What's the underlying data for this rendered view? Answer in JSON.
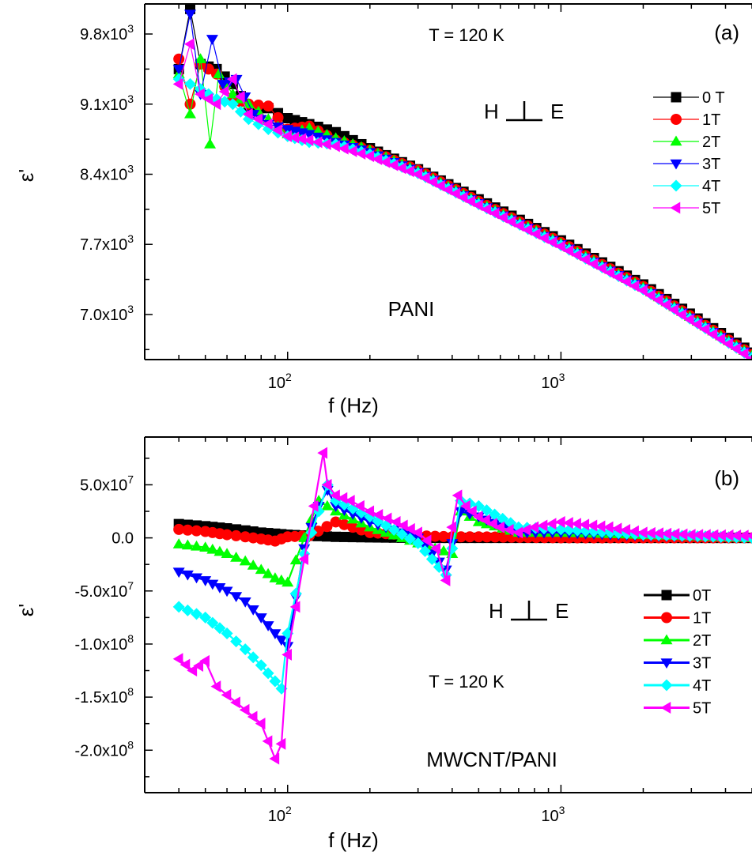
{
  "chart_data": [
    {
      "type": "line",
      "panel_label": "(a)",
      "xlabel": "f (Hz)",
      "ylabel": "ε'",
      "xscale": "log",
      "xlim": [
        30,
        5000
      ],
      "ylim": [
        6550,
        10100
      ],
      "xticks": [
        100,
        1000
      ],
      "xtick_labels": [
        {
          "base": "10",
          "exp": "2"
        },
        {
          "base": "10",
          "exp": "3"
        }
      ],
      "yticks": [
        7000,
        7700,
        8400,
        9100,
        9800
      ],
      "ytick_labels": [
        {
          "base": "7.0x10",
          "exp": "3"
        },
        {
          "base": "7.7x10",
          "exp": "3"
        },
        {
          "base": "8.4x10",
          "exp": "3"
        },
        {
          "base": "9.1x10",
          "exp": "3"
        },
        {
          "base": "9.8x10",
          "exp": "3"
        }
      ],
      "annotations": {
        "temperature": "T = 120 K",
        "geometry_left": "H",
        "geometry_right": "E",
        "sample": "PANI"
      },
      "legend_position": "right",
      "series": [
        {
          "name": "0 T",
          "color": "#000000",
          "marker": "square",
          "x": [
            40,
            44,
            48,
            55,
            63,
            72,
            85,
            100,
            120,
            150,
            200,
            300,
            500,
            1000,
            2000,
            5000
          ],
          "y": [
            9450,
            10050,
            9500,
            9450,
            9300,
            9060,
            9060,
            8960,
            8900,
            8820,
            8660,
            8450,
            8150,
            7740,
            7300,
            6620
          ]
        },
        {
          "name": "1T",
          "color": "#ff0000",
          "marker": "circle",
          "x": [
            40,
            44,
            48,
            55,
            63,
            72,
            85,
            100,
            120,
            150,
            200,
            300,
            500,
            1000,
            2000,
            5000
          ],
          "y": [
            9550,
            9100,
            9500,
            9400,
            9150,
            9100,
            9080,
            8850,
            8880,
            8740,
            8640,
            8440,
            8130,
            7720,
            7280,
            6600
          ]
        },
        {
          "name": "2T",
          "color": "#00ff00",
          "marker": "triangle-up",
          "x": [
            40,
            44,
            48,
            52,
            56,
            63,
            72,
            85,
            100,
            120,
            150,
            200,
            300,
            500,
            1000,
            2000,
            5000
          ],
          "y": [
            9400,
            9000,
            9550,
            8700,
            9400,
            9200,
            9100,
            8950,
            8800,
            8860,
            8760,
            8640,
            8430,
            8120,
            7710,
            7270,
            6590
          ]
        },
        {
          "name": "3T",
          "color": "#0000ff",
          "marker": "triangle-down",
          "x": [
            40,
            44,
            48,
            53,
            58,
            65,
            75,
            85,
            100,
            120,
            150,
            200,
            300,
            500,
            1000,
            2000,
            5000
          ],
          "y": [
            9450,
            10000,
            9200,
            9750,
            9300,
            9350,
            9000,
            8900,
            8850,
            8800,
            8720,
            8620,
            8420,
            8110,
            7700,
            7260,
            6580
          ]
        },
        {
          "name": "4T",
          "color": "#00ffff",
          "marker": "diamond",
          "x": [
            40,
            44,
            48,
            55,
            63,
            72,
            85,
            100,
            120,
            150,
            200,
            300,
            500,
            1000,
            2000,
            5000
          ],
          "y": [
            9350,
            9300,
            9250,
            9150,
            9100,
            8950,
            8850,
            8780,
            8720,
            8700,
            8600,
            8410,
            8100,
            7690,
            7250,
            6570
          ]
        },
        {
          "name": "5T",
          "color": "#ff00ff",
          "marker": "triangle-left",
          "x": [
            40,
            44,
            48,
            55,
            63,
            72,
            85,
            100,
            120,
            150,
            200,
            300,
            500,
            1000,
            2000,
            5000
          ],
          "y": [
            9300,
            9700,
            9200,
            9100,
            9350,
            9000,
            8900,
            8780,
            8740,
            8680,
            8580,
            8400,
            8090,
            7680,
            7240,
            6560
          ]
        }
      ]
    },
    {
      "type": "line",
      "panel_label": "(b)",
      "xlabel": "f (Hz)",
      "ylabel": "ε'",
      "xscale": "log",
      "xlim": [
        30,
        5000
      ],
      "ylim": [
        -240000000.0,
        95000000.0
      ],
      "xticks": [
        100,
        1000
      ],
      "xtick_labels": [
        {
          "base": "10",
          "exp": "2"
        },
        {
          "base": "10",
          "exp": "3"
        }
      ],
      "yticks": [
        -200000000.0,
        -150000000.0,
        -100000000.0,
        -50000000.0,
        0,
        50000000.0
      ],
      "ytick_labels": [
        {
          "base": "-2.0x10",
          "exp": "8"
        },
        {
          "base": "-1.5x10",
          "exp": "8"
        },
        {
          "base": "-1.0x10",
          "exp": "8"
        },
        {
          "base": "-5.0x10",
          "exp": "7"
        },
        {
          "base": "0.0",
          "exp": ""
        },
        {
          "base": "5.0x10",
          "exp": "7"
        }
      ],
      "annotations": {
        "temperature": "T = 120 K",
        "geometry_left": "H",
        "geometry_right": "E",
        "sample": "MWCNT/PANI"
      },
      "legend_position": "right",
      "series": [
        {
          "name": "0T",
          "color": "#000000",
          "marker": "square",
          "x": [
            40,
            50,
            60,
            70,
            80,
            90,
            100,
            120,
            150,
            200,
            300,
            500,
            1000,
            2000,
            5000
          ],
          "y": [
            13000000.0,
            11000000.0,
            9000000.0,
            7000000.0,
            5000000.0,
            4000000.0,
            3000000.0,
            2000000.0,
            1000000.0,
            500000.0,
            0,
            0,
            0,
            0,
            0
          ]
        },
        {
          "name": "1T",
          "color": "#ff0000",
          "marker": "circle",
          "x": [
            40,
            50,
            60,
            70,
            80,
            90,
            100,
            120,
            150,
            200,
            300,
            400,
            500,
            1000,
            2000,
            5000
          ],
          "y": [
            8000000.0,
            6000000.0,
            3000000.0,
            1000000.0,
            -1000000.0,
            -3000000.0,
            1000000.0,
            2000000.0,
            15000000.0,
            5000000.0,
            2000000.0,
            1000000.0,
            1000000.0,
            0,
            0,
            0
          ]
        },
        {
          "name": "2T",
          "color": "#00ff00",
          "marker": "triangle-up",
          "x": [
            40,
            50,
            60,
            70,
            80,
            90,
            100,
            115,
            130,
            150,
            200,
            300,
            400,
            430,
            500,
            700,
            1000,
            2000,
            5000
          ],
          "y": [
            -6000000.0,
            -9000000.0,
            -15000000.0,
            -22000000.0,
            -30000000.0,
            -38000000.0,
            -42000000.0,
            0,
            35000000.0,
            25000000.0,
            10000000.0,
            -5000000.0,
            -15000000.0,
            25000000.0,
            15000000.0,
            5000000.0,
            5000000.0,
            3000000.0,
            0
          ]
        },
        {
          "name": "3T",
          "color": "#0000ff",
          "marker": "triangle-down",
          "x": [
            40,
            50,
            60,
            70,
            80,
            90,
            100,
            115,
            130,
            140,
            150,
            200,
            300,
            380,
            400,
            430,
            500,
            700,
            1000,
            2000,
            5000
          ],
          "y": [
            -32000000.0,
            -40000000.0,
            -50000000.0,
            -60000000.0,
            -75000000.0,
            -90000000.0,
            -102000000.0,
            -10000000.0,
            30000000.0,
            45000000.0,
            30000000.0,
            15000000.0,
            0,
            -30000000.0,
            -5000000.0,
            25000000.0,
            20000000.0,
            5000000.0,
            5000000.0,
            2000000.0,
            0
          ]
        },
        {
          "name": "4T",
          "color": "#00ffff",
          "marker": "diamond",
          "x": [
            40,
            50,
            60,
            70,
            80,
            90,
            95,
            100,
            115,
            130,
            140,
            150,
            200,
            300,
            380,
            400,
            430,
            500,
            700,
            1000,
            2000,
            5000
          ],
          "y": [
            -65000000.0,
            -75000000.0,
            -90000000.0,
            -105000000.0,
            -120000000.0,
            -135000000.0,
            -142000000.0,
            -90000000.0,
            -15000000.0,
            25000000.0,
            50000000.0,
            35000000.0,
            20000000.0,
            -5000000.0,
            -35000000.0,
            -10000000.0,
            35000000.0,
            30000000.0,
            10000000.0,
            8000000.0,
            3000000.0,
            0
          ]
        },
        {
          "name": "5T",
          "color": "#ff00ff",
          "marker": "triangle-left",
          "x": [
            40,
            45,
            50,
            55,
            60,
            70,
            80,
            90,
            95,
            100,
            115,
            125,
            135,
            140,
            150,
            170,
            200,
            250,
            300,
            350,
            380,
            400,
            420,
            450,
            500,
            600,
            700,
            800,
            1000,
            1500,
            2000,
            3000,
            5000
          ],
          "y": [
            -114000000.0,
            -125000000.0,
            -116000000.0,
            -140000000.0,
            -148000000.0,
            -162000000.0,
            -175000000.0,
            -208000000.0,
            -194000000.0,
            -110000000.0,
            -20000000.0,
            30000000.0,
            80000000.0,
            50000000.0,
            40000000.0,
            35000000.0,
            25000000.0,
            15000000.0,
            5000000.0,
            -10000000.0,
            -40000000.0,
            10000000.0,
            40000000.0,
            30000000.0,
            20000000.0,
            10000000.0,
            5000000.0,
            10000000.0,
            15000000.0,
            10000000.0,
            5000000.0,
            3000000.0,
            2000000.0
          ]
        }
      ]
    }
  ]
}
